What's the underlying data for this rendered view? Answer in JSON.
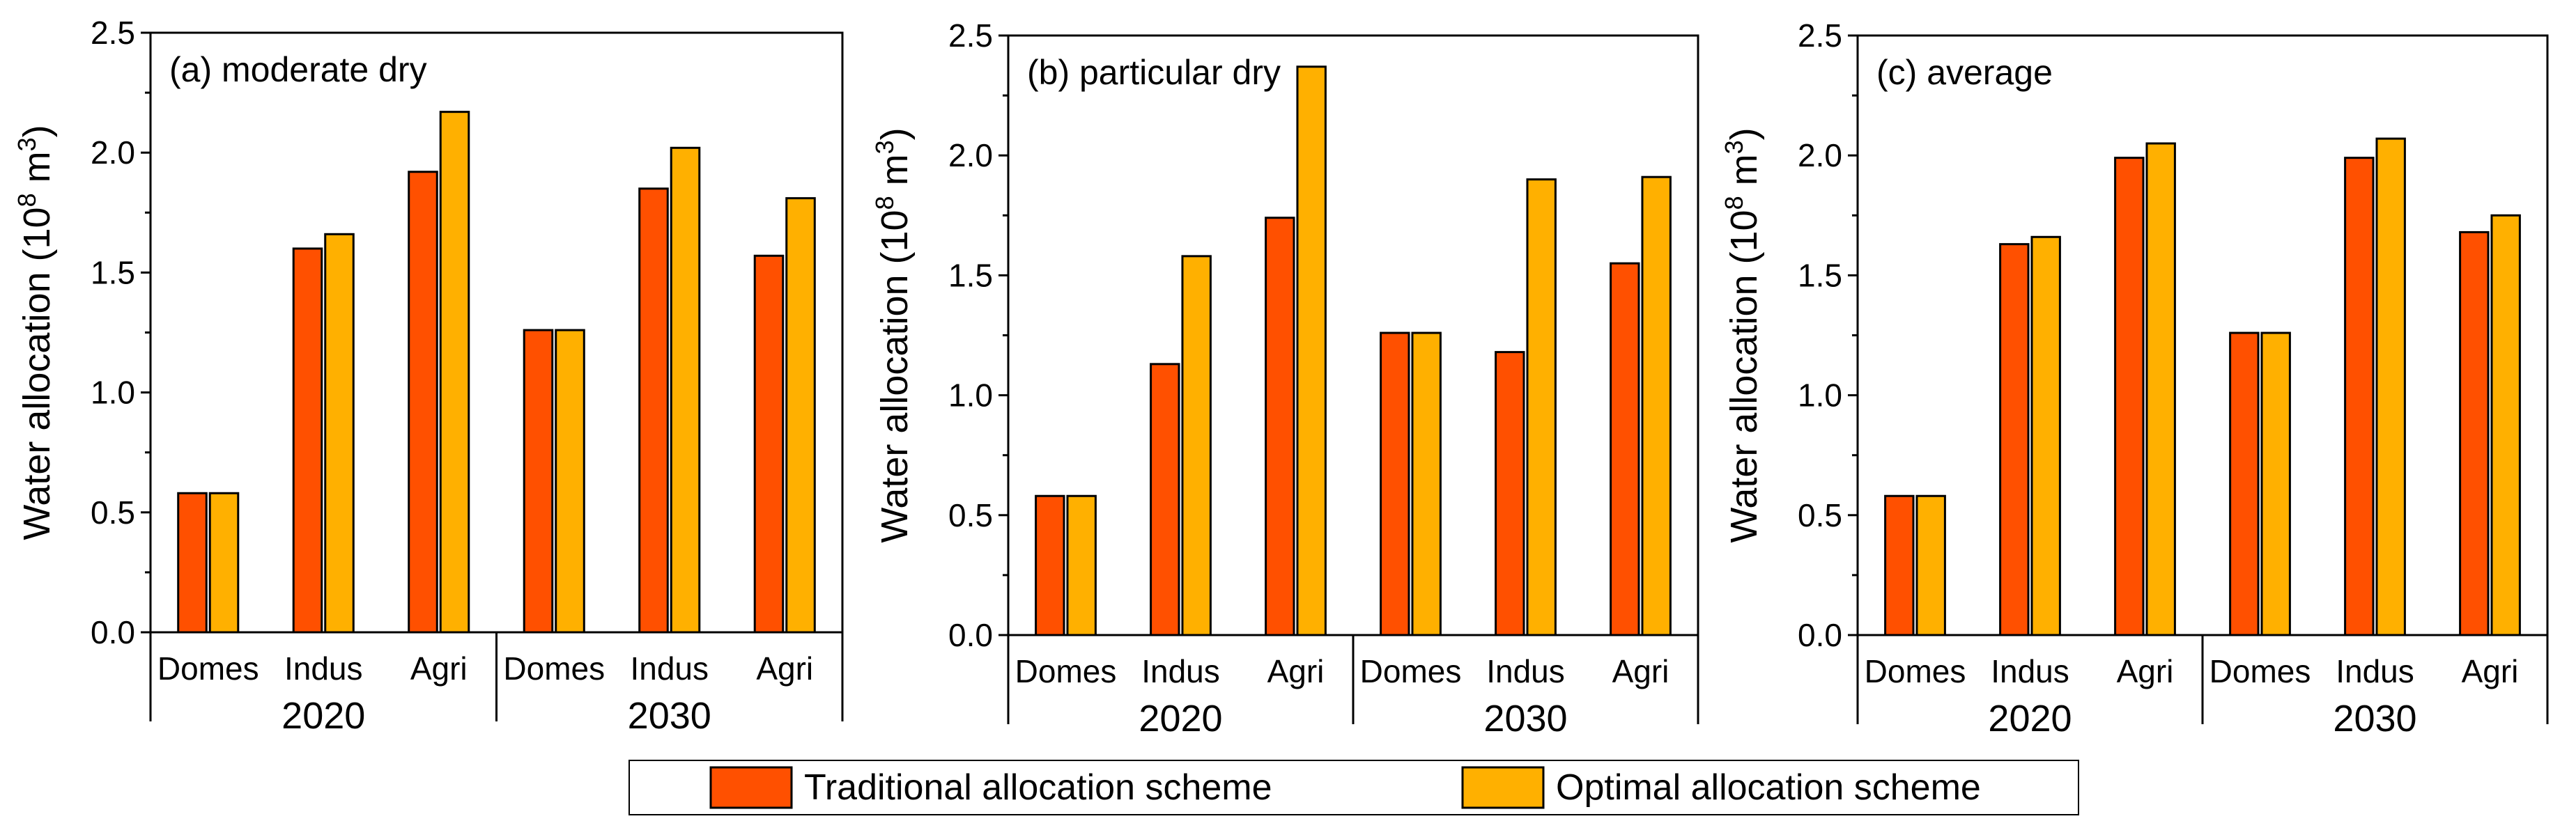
{
  "colors": {
    "traditional": "#FF5000",
    "optimal": "#FFB000",
    "axis": "#000000",
    "bar_stroke": "#000000"
  },
  "legend": {
    "items": [
      {
        "key": "traditional",
        "label": "Traditional allocation scheme"
      },
      {
        "key": "optimal",
        "label": "Optimal allocation scheme"
      }
    ]
  },
  "chart_data": [
    {
      "type": "bar",
      "title": "(a) moderate dry",
      "ylabel": "Water allocation (10",
      "ylabel_exponent": "8",
      "ylabel_unit_prefix": " m",
      "ylabel_unit_exponent": "3",
      "ylabel_close": ")",
      "ylim": [
        0,
        2.5
      ],
      "yticks": [
        "0.0",
        "0.5",
        "1.0",
        "1.5",
        "2.0",
        "2.5"
      ],
      "categories": [
        "Domes",
        "Indus",
        "Agri",
        "Domes",
        "Indus",
        "Agri"
      ],
      "groups": [
        "2020",
        "2030"
      ],
      "series": [
        {
          "name": "Traditional allocation scheme",
          "key": "traditional",
          "values": [
            0.58,
            1.6,
            1.92,
            1.26,
            1.85,
            1.57
          ]
        },
        {
          "name": "Optimal allocation scheme",
          "key": "optimal",
          "values": [
            0.58,
            1.66,
            2.17,
            1.26,
            2.02,
            1.81
          ]
        }
      ]
    },
    {
      "type": "bar",
      "title": "(b) particular dry",
      "ylabel": "Water allocation (10",
      "ylabel_exponent": "8",
      "ylabel_unit_prefix": " m",
      "ylabel_unit_exponent": "3",
      "ylabel_close": ")",
      "ylim": [
        0,
        2.5
      ],
      "yticks": [
        "0.0",
        "0.5",
        "1.0",
        "1.5",
        "2.0",
        "2.5"
      ],
      "categories": [
        "Domes",
        "Indus",
        "Agri",
        "Domes",
        "Indus",
        "Agri"
      ],
      "groups": [
        "2020",
        "2030"
      ],
      "series": [
        {
          "name": "Traditional allocation scheme",
          "key": "traditional",
          "values": [
            0.58,
            1.13,
            1.74,
            1.26,
            1.18,
            1.55
          ]
        },
        {
          "name": "Optimal allocation scheme",
          "key": "optimal",
          "values": [
            0.58,
            1.58,
            2.37,
            1.26,
            1.9,
            1.91
          ]
        }
      ]
    },
    {
      "type": "bar",
      "title": "(c) average",
      "ylabel": "Water allocation (10",
      "ylabel_exponent": "8",
      "ylabel_unit_prefix": " m",
      "ylabel_unit_exponent": "3",
      "ylabel_close": ")",
      "ylim": [
        0,
        2.5
      ],
      "yticks": [
        "0.0",
        "0.5",
        "1.0",
        "1.5",
        "2.0",
        "2.5"
      ],
      "categories": [
        "Domes",
        "Indus",
        "Agri",
        "Domes",
        "Indus",
        "Agri"
      ],
      "groups": [
        "2020",
        "2030"
      ],
      "series": [
        {
          "name": "Traditional allocation scheme",
          "key": "traditional",
          "values": [
            0.58,
            1.63,
            1.99,
            1.26,
            1.99,
            1.68
          ]
        },
        {
          "name": "Optimal allocation scheme",
          "key": "optimal",
          "values": [
            0.58,
            1.66,
            2.05,
            1.26,
            2.07,
            1.75
          ]
        }
      ]
    }
  ]
}
